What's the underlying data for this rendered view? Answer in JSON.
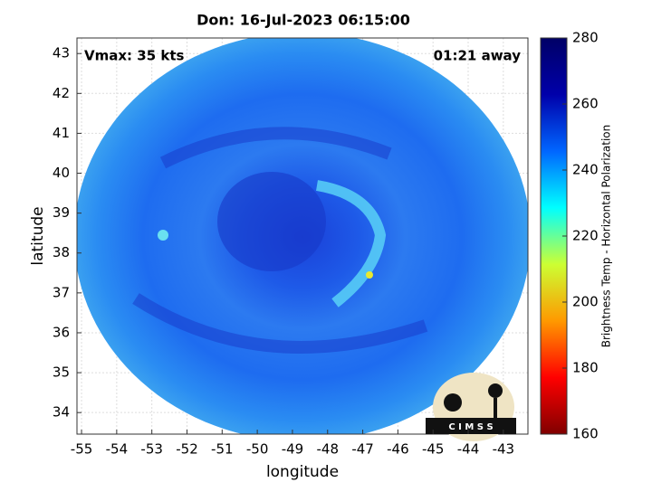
{
  "chart_data": {
    "type": "image",
    "title": "Don: 16-Jul-2023 06:15:00",
    "annotations": [
      "Vmax: 35 kts",
      "01:21 away"
    ],
    "x_label": "longitude",
    "y_label": "latitude",
    "xlim": [
      -55.13,
      -42.3
    ],
    "ylim": [
      33.46,
      43.39
    ],
    "xticks": [
      -55,
      -54,
      -53,
      -52,
      -51,
      -50,
      -49,
      -48,
      -47,
      -46,
      -45,
      -44,
      -43
    ],
    "yticks": [
      34,
      35,
      36,
      37,
      38,
      39,
      40,
      41,
      42,
      43
    ],
    "grid": true,
    "colorbar": {
      "label": "Brightness Temp - Horizontal Polarization",
      "clim": [
        160,
        280
      ],
      "cticks": [
        160,
        180,
        200,
        220,
        240,
        260,
        280
      ],
      "colormap": [
        "#800000",
        "#ff0000",
        "#ff9900",
        "#ccff33",
        "#00ffff",
        "#0066ff",
        "#0000aa",
        "#000066"
      ]
    },
    "logo_text": "C I M S S"
  }
}
